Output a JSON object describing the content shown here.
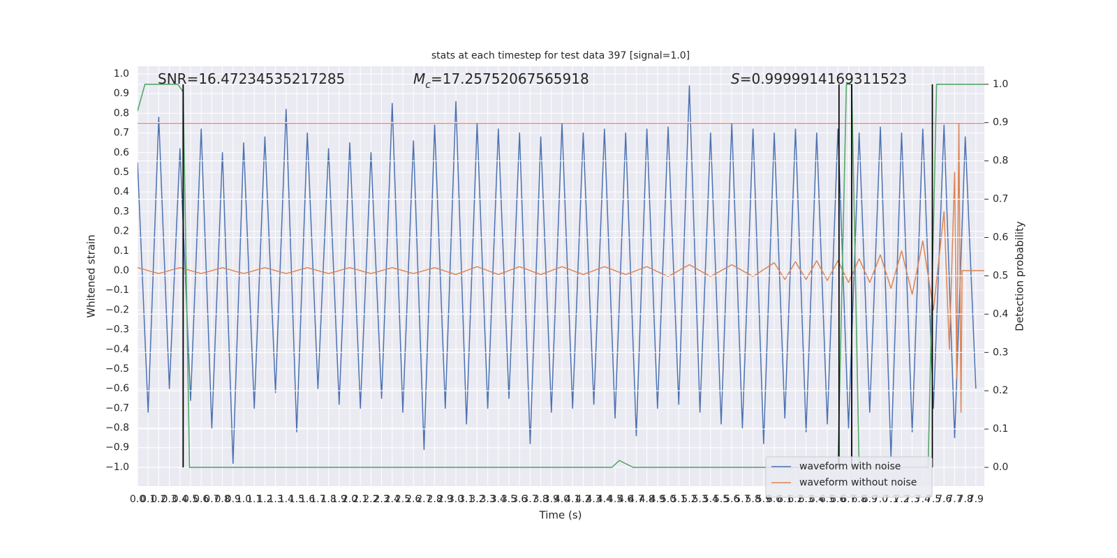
{
  "chart_data": {
    "type": "line",
    "title": "stats at each timestep for test data 397 [signal=1.0]",
    "x_label": "Time (s)",
    "y_label": "Whitened strain",
    "y2_label": "Detection probability",
    "grid": true,
    "legend": "lower right",
    "xlim": [
      0,
      7.98
    ],
    "ylim": [
      -1.096,
      1.039
    ],
    "y2lim": [
      -0.049,
      1.047
    ],
    "xticks": [
      {
        "value": 0,
        "label": "0.0"
      },
      0.1,
      0.2,
      0.3,
      0.4,
      0.5,
      0.6,
      0.7,
      0.8,
      0.9,
      {
        "value": 1,
        "label": "1.0"
      },
      1.1,
      1.2,
      1.3,
      1.4,
      1.5,
      1.6,
      1.7,
      1.8,
      1.9,
      {
        "value": 2,
        "label": "2.0"
      },
      2.1,
      2.2,
      2.3,
      2.4,
      2.5,
      2.6,
      2.7,
      2.8,
      2.9,
      {
        "value": 3,
        "label": "3.0"
      },
      3.1,
      3.2,
      3.3,
      3.4,
      3.5,
      3.6,
      3.7,
      3.8,
      3.9,
      {
        "value": 4,
        "label": "4.0"
      },
      4.1,
      4.2,
      4.3,
      4.4,
      4.5,
      4.6,
      4.7,
      4.8,
      4.9,
      {
        "value": 5,
        "label": "5.0"
      },
      5.1,
      5.2,
      5.3,
      5.4,
      5.5,
      5.6,
      5.7,
      5.8,
      5.9,
      {
        "value": 6,
        "label": "6.0"
      },
      6.1,
      6.2,
      6.3,
      6.4,
      6.5,
      6.6,
      6.7,
      6.8,
      6.9,
      {
        "value": 7,
        "label": "7.0"
      },
      7.1,
      7.2,
      7.3,
      7.4,
      7.5,
      7.6,
      7.7,
      7.8,
      7.9
    ],
    "yticks": [
      {
        "value": -1,
        "label": "−1.0"
      },
      {
        "value": -0.9,
        "label": "−0.9"
      },
      {
        "value": -0.8,
        "label": "−0.8"
      },
      {
        "value": -0.7,
        "label": "−0.7"
      },
      {
        "value": -0.6,
        "label": "−0.6"
      },
      {
        "value": -0.5,
        "label": "−0.5"
      },
      {
        "value": -0.4,
        "label": "−0.4"
      },
      {
        "value": -0.3,
        "label": "−0.3"
      },
      {
        "value": -0.2,
        "label": "−0.2"
      },
      {
        "value": -0.1,
        "label": "−0.1"
      },
      {
        "value": 0,
        "label": "0.0"
      },
      0.1,
      0.2,
      0.3,
      0.4,
      0.5,
      0.6,
      0.7,
      0.8,
      0.9,
      {
        "value": 1,
        "label": "1.0"
      }
    ],
    "y2ticks": [
      {
        "value": 0,
        "label": "0.0"
      },
      0.1,
      0.2,
      0.3,
      0.4,
      0.5,
      0.6,
      0.7,
      0.8,
      0.9,
      {
        "value": 1,
        "label": "1.0"
      }
    ],
    "x": [
      0,
      0.1,
      0.2,
      0.3,
      0.4,
      0.5,
      0.6,
      0.7,
      0.8,
      0.9,
      1,
      1.1,
      1.2,
      1.3,
      1.4,
      1.5,
      1.6,
      1.7,
      1.8,
      1.9,
      2,
      2.1,
      2.2,
      2.3,
      2.4,
      2.5,
      2.6,
      2.7,
      2.8,
      2.9,
      3,
      3.1,
      3.2,
      3.3,
      3.4,
      3.5,
      3.6,
      3.7,
      3.8,
      3.9,
      4,
      4.1,
      4.2,
      4.3,
      4.4,
      4.5,
      4.6,
      4.7,
      4.8,
      4.9,
      5,
      5.1,
      5.2,
      5.3,
      5.4,
      5.5,
      5.6,
      5.7,
      5.8,
      5.9,
      6,
      6.1,
      6.2,
      6.3,
      6.4,
      6.5,
      6.6,
      6.7,
      6.8,
      6.9,
      7,
      7.1,
      7.2,
      7.3,
      7.4,
      7.5,
      7.6,
      7.7,
      7.8,
      7.9
    ],
    "series": [
      {
        "name": "waveform with noise",
        "color": "#4c72b0",
        "values": [
          0.55,
          -0.72,
          0.78,
          -0.6,
          0.62,
          -0.66,
          0.72,
          -0.8,
          0.6,
          -0.98,
          0.65,
          -0.7,
          0.68,
          -0.62,
          0.82,
          -0.82,
          0.7,
          -0.6,
          0.62,
          -0.68,
          0.65,
          -0.7,
          0.6,
          -0.65,
          0.85,
          -0.72,
          0.66,
          -0.91,
          0.74,
          -0.7,
          0.86,
          -0.78,
          0.75,
          -0.7,
          0.72,
          -0.65,
          0.7,
          -0.88,
          0.68,
          -0.72,
          0.75,
          -0.7,
          0.7,
          -0.68,
          0.72,
          -0.75,
          0.7,
          -0.84,
          0.72,
          -0.7,
          0.73,
          -0.68,
          0.94,
          -0.72,
          0.7,
          -0.78,
          0.75,
          -0.8,
          0.72,
          -0.88,
          0.7,
          -0.75,
          0.72,
          -0.82,
          0.7,
          -0.78,
          0.72,
          -0.8,
          0.7,
          -0.72,
          0.73,
          -0.95,
          0.7,
          -0.82,
          0.72,
          -0.7,
          0.74,
          -0.85,
          0.68,
          -0.6
        ]
      },
      {
        "name": "waveform without noise",
        "color": "#dd8452",
        "x": [
          0,
          0.2,
          0.4,
          0.6,
          0.8,
          1,
          1.2,
          1.4,
          1.6,
          1.8,
          2,
          2.2,
          2.4,
          2.6,
          2.8,
          3,
          3.2,
          3.4,
          3.6,
          3.8,
          4,
          4.2,
          4.4,
          4.6,
          4.8,
          5,
          5.2,
          5.4,
          5.6,
          5.8,
          6,
          6.1,
          6.2,
          6.3,
          6.4,
          6.5,
          6.6,
          6.7,
          6.8,
          6.9,
          7,
          7.1,
          7.2,
          7.3,
          7.4,
          7.5,
          7.6,
          7.65,
          7.7,
          7.72,
          7.74,
          7.76,
          7.77,
          7.98
        ],
        "values": [
          0.015,
          -0.015,
          0.015,
          -0.015,
          0.015,
          -0.015,
          0.015,
          -0.015,
          0.015,
          -0.015,
          0.015,
          -0.015,
          0.015,
          -0.015,
          0.015,
          -0.02,
          0.02,
          -0.02,
          0.02,
          -0.02,
          0.02,
          -0.02,
          0.02,
          -0.02,
          0.02,
          -0.03,
          0.03,
          -0.03,
          0.03,
          -0.03,
          0.04,
          -0.045,
          0.045,
          -0.045,
          0.05,
          -0.05,
          0.05,
          -0.06,
          0.06,
          -0.06,
          0.08,
          -0.09,
          0.1,
          -0.12,
          0.15,
          -0.2,
          0.3,
          -0.4,
          0.5,
          -0.55,
          0.75,
          -0.72,
          0,
          0
        ]
      },
      {
        "color": "#55a868",
        "axis": "y2",
        "x": [
          0,
          0.07,
          0.38,
          0.43,
          0.49,
          4.47,
          4.54,
          4.67,
          6.6,
          6.68,
          6.73,
          6.8,
          7.45,
          7.53,
          7.98
        ],
        "values": [
          0.93,
          1,
          1,
          0.98,
          0,
          0,
          0.018,
          0,
          0,
          1,
          1,
          0,
          0,
          1,
          1
        ]
      }
    ],
    "hlines": [
      {
        "value": 0.75,
        "color": "#c44e52"
      }
    ],
    "vlines": {
      "color": "#000000",
      "x": [
        0.43,
        6.61,
        6.73,
        7.49
      ]
    },
    "annotations": [
      {
        "label": "SNR",
        "sep": "=",
        "value": 16.47234535217285
      },
      {
        "label": "M",
        "italic": true,
        "subscript": "c",
        "sep": "=",
        "value": 17.25752067565918
      },
      {
        "label": "S",
        "italic": true,
        "sep": "=",
        "value": 0.9999914169311523
      }
    ]
  }
}
